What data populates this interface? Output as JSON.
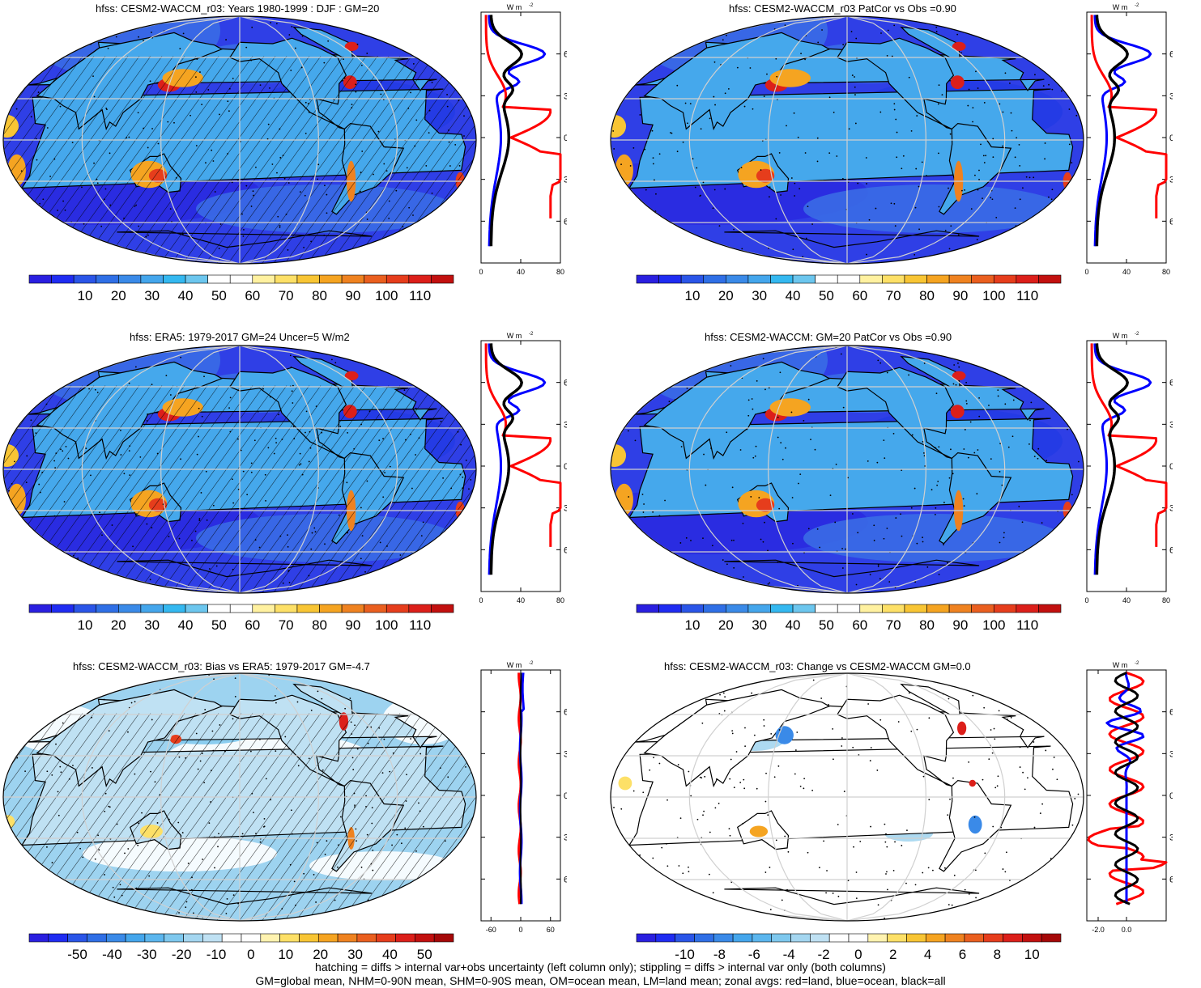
{
  "panels": [
    {
      "id": "p1",
      "title": "hfss: CESM2-WACCM_r03: Years 1980-1999 : DJF : GM=20",
      "map_style": "abs",
      "hatching": true,
      "profile": {
        "unit_label": "W m",
        "unit_sup": "-2",
        "xlim": [
          0,
          80
        ],
        "xticks": [
          "0",
          "40",
          "80"
        ],
        "lat_ticks": [
          "60N",
          "30N",
          "0",
          "30S",
          "60S"
        ]
      },
      "colorbar": {
        "colors": [
          "#2a1fe0",
          "#1f2cf2",
          "#2a55e8",
          "#2f6fe6",
          "#3a8ae8",
          "#44a6ec",
          "#34b8f0",
          "#6cc6ee",
          "#ffffff",
          "#ffffff",
          "#fff1a0",
          "#fde067",
          "#f8c534",
          "#f5a421",
          "#ef8220",
          "#ea5f1f",
          "#e63d1c",
          "#dc1f1a",
          "#c2100f"
        ],
        "labels": [
          "10",
          "20",
          "30",
          "40",
          "50",
          "60",
          "70",
          "80",
          "90",
          "100",
          "110"
        ]
      }
    },
    {
      "id": "p2",
      "title": "hfss: CESM2-WACCM_r03 PatCor vs Obs =0.90",
      "map_style": "abs",
      "hatching": false,
      "profile": {
        "unit_label": "W m",
        "unit_sup": "-2",
        "xlim": [
          0,
          80
        ],
        "xticks": [
          "0",
          "40",
          "80"
        ],
        "lat_ticks": [
          "60N",
          "30N",
          "0",
          "30S",
          "60S"
        ]
      },
      "colorbar": {
        "colors": [
          "#2a1fe0",
          "#1f2cf2",
          "#2a55e8",
          "#2f6fe6",
          "#3a8ae8",
          "#44a6ec",
          "#34b8f0",
          "#6cc6ee",
          "#ffffff",
          "#ffffff",
          "#fff1a0",
          "#fde067",
          "#f8c534",
          "#f5a421",
          "#ef8220",
          "#ea5f1f",
          "#e63d1c",
          "#dc1f1a",
          "#c2100f"
        ],
        "labels": [
          "10",
          "20",
          "30",
          "40",
          "50",
          "60",
          "70",
          "80",
          "90",
          "100",
          "110"
        ]
      }
    },
    {
      "id": "p3",
      "title": "hfss: ERA5: 1979-2017 GM=24 Uncer=5 W/m2",
      "map_style": "abs",
      "hatching": true,
      "profile": {
        "unit_label": "W m",
        "unit_sup": "-2",
        "xlim": [
          0,
          80
        ],
        "xticks": [
          "0",
          "40",
          "80"
        ],
        "lat_ticks": [
          "60N",
          "30N",
          "0",
          "30S",
          "60S"
        ]
      },
      "colorbar": {
        "colors": [
          "#2a1fe0",
          "#1f2cf2",
          "#2a55e8",
          "#2f6fe6",
          "#3a8ae8",
          "#44a6ec",
          "#34b8f0",
          "#6cc6ee",
          "#ffffff",
          "#ffffff",
          "#fff1a0",
          "#fde067",
          "#f8c534",
          "#f5a421",
          "#ef8220",
          "#ea5f1f",
          "#e63d1c",
          "#dc1f1a",
          "#c2100f"
        ],
        "labels": [
          "10",
          "20",
          "30",
          "40",
          "50",
          "60",
          "70",
          "80",
          "90",
          "100",
          "110"
        ]
      }
    },
    {
      "id": "p4",
      "title": "hfss: CESM2-WACCM: GM=20 PatCor vs Obs =0.90",
      "map_style": "abs",
      "hatching": false,
      "profile": {
        "unit_label": "W m",
        "unit_sup": "-2",
        "xlim": [
          0,
          80
        ],
        "xticks": [
          "0",
          "40",
          "80"
        ],
        "lat_ticks": [
          "60N",
          "30N",
          "0",
          "30S",
          "60S"
        ]
      },
      "colorbar": {
        "colors": [
          "#2a1fe0",
          "#1f2cf2",
          "#2a55e8",
          "#2f6fe6",
          "#3a8ae8",
          "#44a6ec",
          "#34b8f0",
          "#6cc6ee",
          "#ffffff",
          "#ffffff",
          "#fff1a0",
          "#fde067",
          "#f8c534",
          "#f5a421",
          "#ef8220",
          "#ea5f1f",
          "#e63d1c",
          "#dc1f1a",
          "#c2100f"
        ],
        "labels": [
          "10",
          "20",
          "30",
          "40",
          "50",
          "60",
          "70",
          "80",
          "90",
          "100",
          "110"
        ]
      }
    },
    {
      "id": "p5",
      "title": "hfss: CESM2-WACCM_r03: Bias vs ERA5: 1979-2017 GM=-4.7",
      "map_style": "bias",
      "hatching": true,
      "profile": {
        "unit_label": "W m",
        "unit_sup": "-2",
        "xlim": [
          -80,
          80
        ],
        "xticks": [
          "-60",
          "0",
          "60"
        ],
        "lat_ticks": [
          "60N",
          "30N",
          "0",
          "30S",
          "60S"
        ]
      },
      "colorbar": {
        "colors": [
          "#2a1fe0",
          "#1f2cf2",
          "#2a55e8",
          "#2f6fe6",
          "#3a8ae8",
          "#44a6ec",
          "#5bb6ee",
          "#7ec8ee",
          "#a4d6f0",
          "#bfe1f3",
          "#ffffff",
          "#ffffff",
          "#fff3b0",
          "#fde067",
          "#f8c534",
          "#f5a421",
          "#ef8220",
          "#ea5f1f",
          "#e63d1c",
          "#dc1f1a",
          "#c2100f",
          "#a50808"
        ],
        "labels": [
          "-50",
          "-40",
          "-30",
          "-20",
          "-10",
          "0",
          "10",
          "20",
          "30",
          "40",
          "50"
        ]
      }
    },
    {
      "id": "p6",
      "title": "hfss: CESM2-WACCM_r03: Change vs CESM2-WACCM GM=0.0",
      "map_style": "change",
      "hatching": false,
      "profile": {
        "unit_label": "W m",
        "unit_sup": "-2",
        "xlim": [
          -2.8,
          2.8
        ],
        "xticks": [
          "-2.0",
          "0.0"
        ],
        "lat_ticks": [
          "60N",
          "30N",
          "0",
          "30S",
          "60S"
        ]
      },
      "colorbar": {
        "colors": [
          "#2a1fe0",
          "#1f2cf2",
          "#2a55e8",
          "#2f6fe6",
          "#3a8ae8",
          "#44a6ec",
          "#5bb6ee",
          "#7ec8ee",
          "#a4d6f0",
          "#bfe1f3",
          "#ffffff",
          "#ffffff",
          "#fff3b0",
          "#fde067",
          "#f8c534",
          "#f5a421",
          "#ef8220",
          "#ea5f1f",
          "#e63d1c",
          "#dc1f1a",
          "#c2100f",
          "#a50808"
        ],
        "labels": [
          "-10",
          "-8",
          "-6",
          "-4",
          "-2",
          "0",
          "2",
          "4",
          "6",
          "8",
          "10"
        ]
      }
    }
  ],
  "footer": {
    "line1": "hatching = diffs > internal var+obs uncertainty (left column only); stippling = diffs > internal var only (both columns)",
    "line2": "GM=global mean, NHM=0-90N mean, SHM=0-90S mean, OM=ocean mean, LM=land mean; zonal avgs: red=land, blue=ocean, black=all"
  },
  "colors": {
    "land_line": "#ff0000",
    "ocean_line": "#0000ff",
    "all_line": "#000000",
    "grid": "#d0d0d0"
  }
}
